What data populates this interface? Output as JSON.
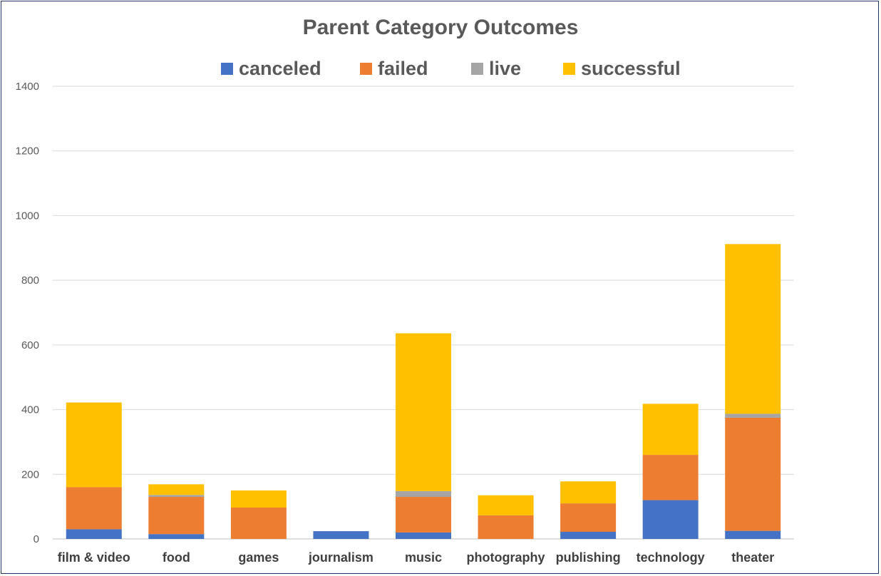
{
  "chart_data": {
    "type": "bar",
    "stacked": true,
    "title": "Parent Category Outcomes",
    "xlabel": "",
    "ylabel": "",
    "categories": [
      "film & video",
      "food",
      "games",
      "journalism",
      "music",
      "photography",
      "publishing",
      "technology",
      "theater"
    ],
    "series": [
      {
        "name": "canceled",
        "color": "#4472c4",
        "values": [
          30,
          15,
          0,
          24,
          20,
          0,
          22,
          120,
          25
        ]
      },
      {
        "name": "failed",
        "color": "#ed7d31",
        "values": [
          130,
          115,
          97,
          0,
          110,
          73,
          88,
          140,
          350
        ]
      },
      {
        "name": "live",
        "color": "#a5a5a5",
        "values": [
          0,
          6,
          0,
          0,
          18,
          0,
          0,
          0,
          12
        ]
      },
      {
        "name": "successful",
        "color": "#ffc000",
        "values": [
          262,
          33,
          53,
          0,
          488,
          62,
          68,
          158,
          525
        ]
      }
    ],
    "ylim": [
      0,
      1400
    ],
    "yticks": [
      0,
      200,
      400,
      600,
      800,
      1000,
      1200,
      1400
    ],
    "grid": true,
    "legend_position": "top"
  }
}
